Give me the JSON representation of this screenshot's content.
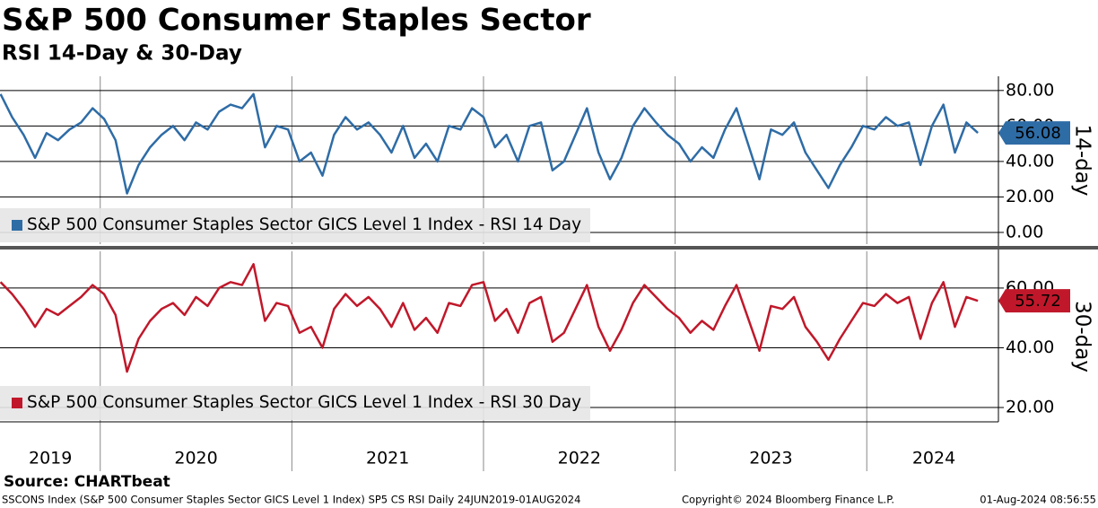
{
  "chart_data": [
    {
      "type": "line",
      "title": "S&P 500 Consumer Staples Sector",
      "subtitle": "RSI 14-Day & 30-Day",
      "source": "Source: CHARTbeat",
      "footnote": "SSCONS Index (S&P 500 Consumer Staples Sector GICS Level 1 Index) SP5 CS RSI  Daily 24JUN2019-01AUG2024",
      "copyright": "Copyright© 2024 Bloomberg Finance L.P.",
      "timestamp": "01-Aug-2024 08:56:55",
      "ylabel": "14-day",
      "x": [
        2019.48,
        2019.54,
        2019.6,
        2019.66,
        2019.72,
        2019.78,
        2019.84,
        2019.9,
        2019.96,
        2020.02,
        2020.08,
        2020.14,
        2020.2,
        2020.26,
        2020.32,
        2020.38,
        2020.44,
        2020.5,
        2020.56,
        2020.62,
        2020.68,
        2020.74,
        2020.8,
        2020.86,
        2020.92,
        2020.98,
        2021.04,
        2021.1,
        2021.16,
        2021.22,
        2021.28,
        2021.34,
        2021.4,
        2021.46,
        2021.52,
        2021.58,
        2021.64,
        2021.7,
        2021.76,
        2021.82,
        2021.88,
        2021.94,
        2022.0,
        2022.06,
        2022.12,
        2022.18,
        2022.24,
        2022.3,
        2022.36,
        2022.42,
        2022.48,
        2022.54,
        2022.6,
        2022.66,
        2022.72,
        2022.78,
        2022.84,
        2022.9,
        2022.96,
        2023.02,
        2023.08,
        2023.14,
        2023.2,
        2023.26,
        2023.32,
        2023.38,
        2023.44,
        2023.5,
        2023.56,
        2023.62,
        2023.68,
        2023.74,
        2023.8,
        2023.86,
        2023.92,
        2023.98,
        2024.04,
        2024.1,
        2024.16,
        2024.22,
        2024.28,
        2024.34,
        2024.4,
        2024.46,
        2024.52,
        2024.58
      ],
      "series": [
        {
          "name": "S&P 500 Consumer Staples Sector GICS Level 1 Index - RSI 14 Day",
          "color": "#2e6ca6",
          "values": [
            78,
            65,
            55,
            42,
            56,
            52,
            58,
            62,
            70,
            64,
            52,
            22,
            38,
            48,
            55,
            60,
            52,
            62,
            58,
            68,
            72,
            70,
            78,
            48,
            60,
            58,
            40,
            45,
            32,
            55,
            65,
            58,
            62,
            55,
            45,
            60,
            42,
            50,
            40,
            60,
            58,
            70,
            65,
            48,
            55,
            40,
            60,
            62,
            35,
            40,
            55,
            70,
            45,
            30,
            42,
            60,
            70,
            62,
            55,
            50,
            40,
            48,
            42,
            58,
            70,
            50,
            30,
            58,
            55,
            62,
            45,
            35,
            25,
            38,
            48,
            60,
            58,
            65,
            60,
            62,
            38,
            60,
            72,
            45,
            62,
            56.08
          ]
        }
      ],
      "xlim": [
        2019.477,
        2024.687
      ],
      "ylim": [
        -6.6,
        88
      ],
      "yticks": [
        {
          "value": 0,
          "label": "0.00"
        },
        {
          "value": 20,
          "label": "20.00"
        },
        {
          "value": 40,
          "label": "40.00"
        },
        {
          "value": 60,
          "label": "60.00"
        },
        {
          "value": 80,
          "label": "80.00"
        }
      ],
      "x_dividers": [
        2020,
        2021,
        2022,
        2023,
        2024
      ],
      "grid": true
    },
    {
      "type": "line",
      "ylabel": "30-day",
      "x": [
        2019.48,
        2019.54,
        2019.6,
        2019.66,
        2019.72,
        2019.78,
        2019.84,
        2019.9,
        2019.96,
        2020.02,
        2020.08,
        2020.14,
        2020.2,
        2020.26,
        2020.32,
        2020.38,
        2020.44,
        2020.5,
        2020.56,
        2020.62,
        2020.68,
        2020.74,
        2020.8,
        2020.86,
        2020.92,
        2020.98,
        2021.04,
        2021.1,
        2021.16,
        2021.22,
        2021.28,
        2021.34,
        2021.4,
        2021.46,
        2021.52,
        2021.58,
        2021.64,
        2021.7,
        2021.76,
        2021.82,
        2021.88,
        2021.94,
        2022.0,
        2022.06,
        2022.12,
        2022.18,
        2022.24,
        2022.3,
        2022.36,
        2022.42,
        2022.48,
        2022.54,
        2022.6,
        2022.66,
        2022.72,
        2022.78,
        2022.84,
        2022.9,
        2022.96,
        2023.02,
        2023.08,
        2023.14,
        2023.2,
        2023.26,
        2023.32,
        2023.38,
        2023.44,
        2023.5,
        2023.56,
        2023.62,
        2023.68,
        2023.74,
        2023.8,
        2023.86,
        2023.92,
        2023.98,
        2024.04,
        2024.1,
        2024.16,
        2024.22,
        2024.28,
        2024.34,
        2024.4,
        2024.46,
        2024.52,
        2024.58
      ],
      "series": [
        {
          "name": "S&P 500 Consumer Staples Sector GICS Level 1 Index - RSI 30 Day",
          "color": "#c0182a",
          "values": [
            62,
            58,
            53,
            47,
            53,
            51,
            54,
            57,
            61,
            58,
            51,
            32,
            43,
            49,
            53,
            55,
            51,
            57,
            54,
            60,
            62,
            61,
            68,
            49,
            55,
            54,
            45,
            47,
            40,
            53,
            58,
            54,
            57,
            53,
            47,
            55,
            46,
            50,
            45,
            55,
            54,
            61,
            62,
            49,
            53,
            45,
            55,
            57,
            42,
            45,
            53,
            61,
            47,
            39,
            46,
            55,
            61,
            57,
            53,
            50,
            45,
            49,
            46,
            54,
            61,
            50,
            39,
            54,
            53,
            57,
            47,
            42,
            36,
            43,
            49,
            55,
            54,
            58,
            55,
            57,
            43,
            55,
            62,
            47,
            57,
            55.72
          ]
        }
      ],
      "xlim": [
        2019.477,
        2024.687
      ],
      "ylim": [
        15.2,
        72.3
      ],
      "yticks": [
        {
          "value": 20,
          "label": "20.00"
        },
        {
          "value": 40,
          "label": "40.00"
        },
        {
          "value": 60,
          "label": "60.00"
        }
      ],
      "xticks": [
        {
          "value": 2019.74,
          "label": "2019"
        },
        {
          "value": 2020.5,
          "label": "2020"
        },
        {
          "value": 2021.5,
          "label": "2021"
        },
        {
          "value": 2022.5,
          "label": "2022"
        },
        {
          "value": 2023.5,
          "label": "2023"
        },
        {
          "value": 2024.35,
          "label": "2024"
        }
      ],
      "x_dividers": [
        2020,
        2021,
        2022,
        2023,
        2024
      ],
      "grid": true
    }
  ]
}
